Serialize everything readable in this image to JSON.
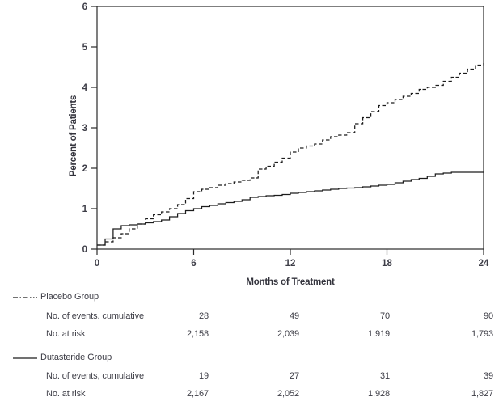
{
  "chart_data": {
    "type": "line",
    "subtype": "step",
    "title": "",
    "xlabel": "Months of Treatment",
    "ylabel": "Percent of Patients",
    "xlim": [
      0,
      24
    ],
    "ylim": [
      0,
      6
    ],
    "x_ticks": [
      0,
      6,
      12,
      18,
      24
    ],
    "y_ticks": [
      0,
      1,
      2,
      3,
      4,
      5,
      6
    ],
    "grid": false,
    "frame": "full-box",
    "x_step": 0.5,
    "line_color": "#1c1c1c",
    "series": [
      {
        "name": "Placebo Group",
        "line_style": "dash-dot",
        "values": [
          0.1,
          0.18,
          0.28,
          0.38,
          0.5,
          0.62,
          0.75,
          0.85,
          0.92,
          1.0,
          1.1,
          1.25,
          1.42,
          1.48,
          1.52,
          1.58,
          1.62,
          1.66,
          1.7,
          1.76,
          1.98,
          2.05,
          2.15,
          2.25,
          2.4,
          2.5,
          2.55,
          2.6,
          2.7,
          2.78,
          2.82,
          2.88,
          3.1,
          3.25,
          3.4,
          3.55,
          3.62,
          3.7,
          3.78,
          3.85,
          3.95,
          4.0,
          4.05,
          4.15,
          4.25,
          4.35,
          4.45,
          4.55,
          4.6
        ]
      },
      {
        "name": "Dutasteride Group",
        "line_style": "solid",
        "values": [
          0.1,
          0.25,
          0.5,
          0.58,
          0.6,
          0.62,
          0.65,
          0.68,
          0.72,
          0.8,
          0.88,
          0.95,
          1.0,
          1.05,
          1.08,
          1.12,
          1.15,
          1.18,
          1.22,
          1.28,
          1.3,
          1.32,
          1.33,
          1.35,
          1.38,
          1.4,
          1.42,
          1.44,
          1.46,
          1.48,
          1.5,
          1.51,
          1.52,
          1.54,
          1.56,
          1.58,
          1.6,
          1.64,
          1.68,
          1.72,
          1.75,
          1.8,
          1.86,
          1.88,
          1.9,
          1.9,
          1.9,
          1.9,
          1.9
        ]
      }
    ]
  },
  "axes": {
    "y_title": "Percent of Patients",
    "x_title": "Months of Treatment"
  },
  "risk_table": {
    "time_points": [
      6,
      12,
      18,
      24
    ],
    "groups": [
      {
        "name": "Placebo Group",
        "line_style": "dash-dot",
        "rows": [
          {
            "label": "No. of events. cumulative",
            "values": [
              "28",
              "49",
              "70",
              "90"
            ]
          },
          {
            "label": "No. at risk",
            "values": [
              "2,158",
              "2,039",
              "1,919",
              "1,793"
            ]
          }
        ]
      },
      {
        "name": "Dutasteride Group",
        "line_style": "solid",
        "rows": [
          {
            "label": "No. of events, cumulative",
            "values": [
              "19",
              "27",
              "31",
              "39"
            ]
          },
          {
            "label": "No. at risk",
            "values": [
              "2,167",
              "2,052",
              "1,928",
              "1,827"
            ]
          }
        ]
      }
    ]
  },
  "colors": {
    "line": "#1c1c1c",
    "text": "#3d3d46",
    "frame": "#2a2a2a"
  }
}
